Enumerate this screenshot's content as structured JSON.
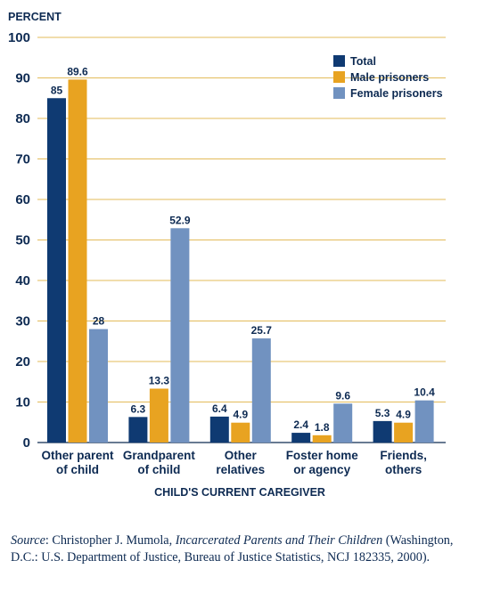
{
  "chart_data": {
    "type": "bar",
    "ylabel": "PERCENT",
    "xlabel": "CHILD'S CURRENT CAREGIVER",
    "ylim": [
      0,
      100
    ],
    "yticks": [
      0,
      10,
      20,
      30,
      40,
      50,
      60,
      70,
      80,
      90,
      100
    ],
    "grid": true,
    "legend_position": "top-right",
    "categories": [
      [
        "Other parent",
        "of child"
      ],
      [
        "Grandparent",
        "of child"
      ],
      [
        "Other",
        "relatives"
      ],
      [
        "Foster home",
        "or agency"
      ],
      [
        "Friends,",
        "others"
      ]
    ],
    "series": [
      {
        "name": "Total",
        "color": "#0f3a72",
        "values": [
          85,
          6.3,
          6.4,
          2.4,
          5.3
        ],
        "labels": [
          "85",
          "6.3",
          "6.4",
          "2.4",
          "5.3"
        ]
      },
      {
        "name": "Male prisoners",
        "color": "#e8a321",
        "values": [
          89.6,
          13.3,
          4.9,
          1.8,
          4.9
        ],
        "labels": [
          "89.6",
          "13.3",
          "4.9",
          "1.8",
          "4.9"
        ]
      },
      {
        "name": "Female prisoners",
        "color": "#7192c0",
        "values": [
          28,
          52.9,
          25.7,
          9.6,
          10.4
        ],
        "labels": [
          "28",
          "52.9",
          "25.7",
          "9.6",
          "10.4"
        ]
      }
    ],
    "grid_color": "#e3bb5a"
  },
  "source": {
    "label": "Source",
    "author": ": Christopher J. Mumola, ",
    "title": "Incarcerated Parents and Their Children",
    "rest": " (Washington, D.C.: U.S. Department of Justice, Bureau of Justice Statistics, NCJ 182335, 2000)."
  }
}
